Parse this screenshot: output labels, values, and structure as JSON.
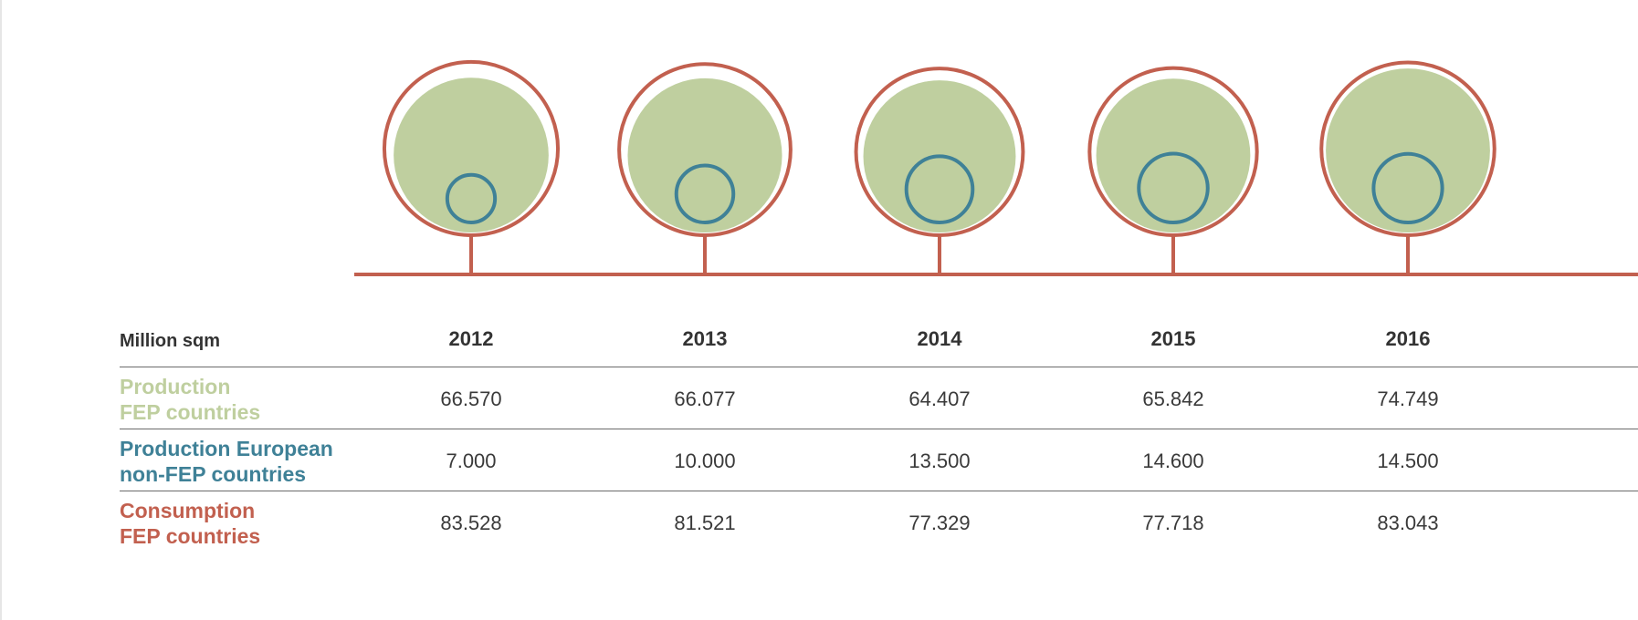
{
  "colors": {
    "production_fep": "#bfcf9f",
    "production_non_fep": "#3f8197",
    "consumption_fep": "#c2604f",
    "text": "#333333"
  },
  "table": {
    "unit_label": "Million sqm",
    "years": [
      "2012",
      "2013",
      "2014",
      "2015",
      "2016"
    ],
    "rows": [
      {
        "label_line1": "Production",
        "label_line2": "FEP countries",
        "values": [
          "66.570",
          "66.077",
          "64.407",
          "65.842",
          "74.749"
        ]
      },
      {
        "label_line1": "Production European",
        "label_line2": "non-FEP countries",
        "values": [
          "7.000",
          "10.000",
          "13.500",
          "14.600",
          "14.500"
        ]
      },
      {
        "label_line1": "Consumption",
        "label_line2": "FEP countries",
        "values": [
          "83.528",
          "81.521",
          "77.329",
          "77.718",
          "83.043"
        ]
      }
    ]
  },
  "chart_data": {
    "type": "bubble",
    "unit": "Million sqm",
    "categories": [
      "2012",
      "2013",
      "2014",
      "2015",
      "2016"
    ],
    "series": [
      {
        "name": "Production FEP countries",
        "values": [
          66.57,
          66.077,
          64.407,
          65.842,
          74.749
        ]
      },
      {
        "name": "Production European non-FEP countries",
        "values": [
          7.0,
          10.0,
          13.5,
          14.6,
          14.5
        ]
      },
      {
        "name": "Consumption FEP countries",
        "values": [
          83.528,
          81.521,
          77.329,
          77.718,
          83.043
        ]
      }
    ]
  }
}
